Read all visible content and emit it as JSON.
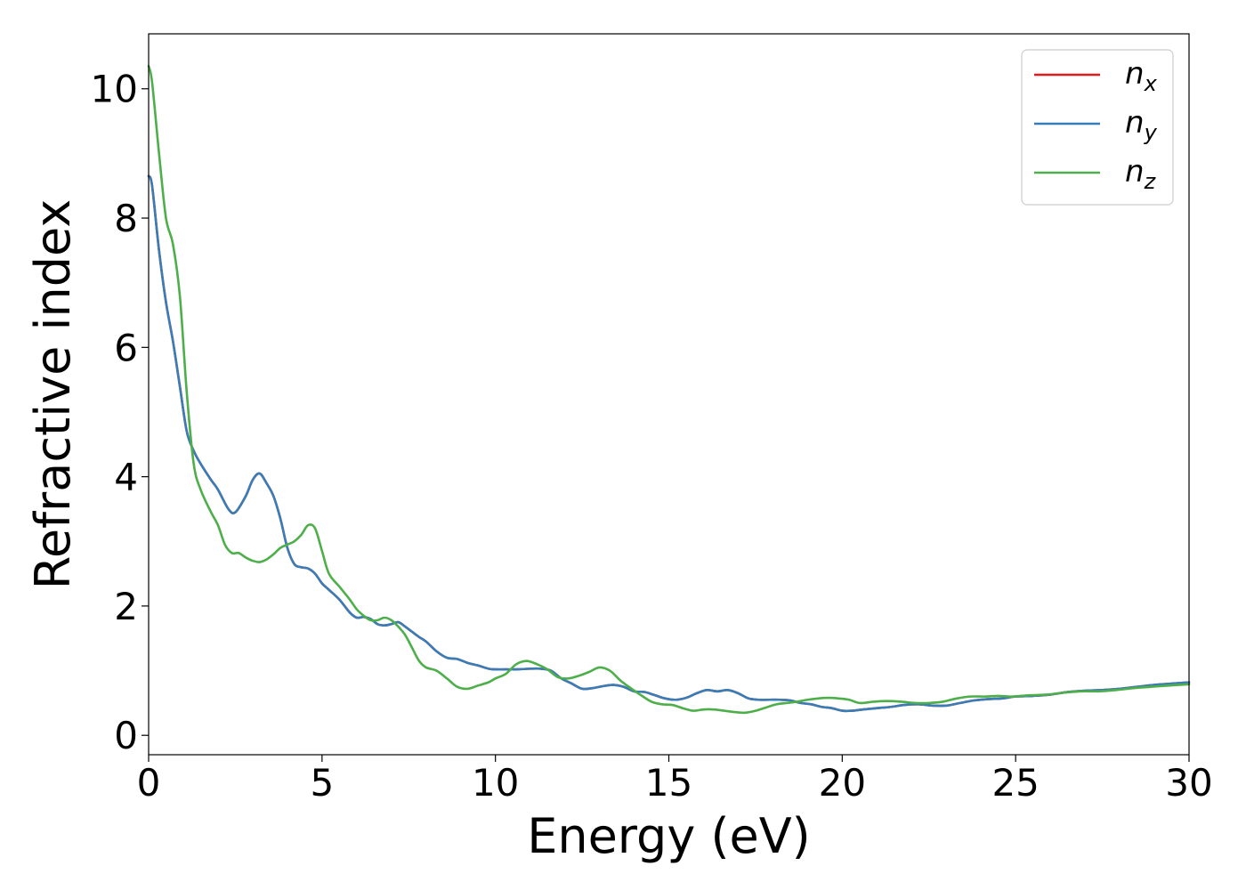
{
  "chart_data": {
    "type": "line",
    "title": "",
    "xlabel": "Energy (eV)",
    "ylabel": "Refractive index",
    "xlim": [
      0,
      30
    ],
    "ylim": [
      -0.3,
      10.85
    ],
    "xticks": [
      0,
      5,
      10,
      15,
      20,
      25,
      30
    ],
    "yticks": [
      0,
      2,
      4,
      6,
      8,
      10
    ],
    "xtick_labels": [
      "0",
      "5",
      "10",
      "15",
      "20",
      "25",
      "30"
    ],
    "ytick_labels": [
      "0",
      "2",
      "4",
      "6",
      "8",
      "10"
    ],
    "grid": false,
    "legend_position": "top-right",
    "series": [
      {
        "name": "n_x",
        "label_main": "n",
        "label_sub": "x",
        "color": "#e41a1c",
        "x": [
          0,
          0.1,
          0.3,
          0.5,
          0.7,
          0.9,
          1.1,
          1.3,
          1.5,
          1.8,
          2.0,
          2.3,
          2.5,
          2.8,
          3.0,
          3.2,
          3.4,
          3.6,
          3.8,
          4.0,
          4.2,
          4.4,
          4.6,
          4.8,
          5.0,
          5.2,
          5.5,
          5.8,
          6.0,
          6.2,
          6.4,
          6.6,
          6.8,
          7.0,
          7.2,
          7.4,
          7.6,
          7.8,
          8.0,
          8.3,
          8.6,
          8.9,
          9.2,
          9.5,
          9.8,
          10.0,
          10.3,
          10.6,
          11.0,
          11.3,
          11.6,
          11.9,
          12.2,
          12.5,
          12.8,
          13.1,
          13.4,
          13.7,
          14.0,
          14.3,
          14.6,
          14.9,
          15.2,
          15.5,
          15.8,
          16.1,
          16.4,
          16.7,
          17.0,
          17.3,
          17.6,
          17.9,
          18.2,
          18.5,
          18.8,
          19.1,
          19.4,
          19.7,
          20.0,
          20.3,
          20.6,
          21.0,
          21.4,
          21.8,
          22.2,
          22.6,
          23.0,
          23.4,
          23.8,
          24.2,
          24.6,
          25.0,
          25.5,
          26.0,
          26.5,
          27.0,
          27.5,
          28.0,
          28.5,
          29.0,
          29.5,
          30.0
        ],
        "y": [
          8.65,
          8.5,
          7.5,
          6.7,
          6.1,
          5.4,
          4.7,
          4.4,
          4.2,
          3.95,
          3.8,
          3.5,
          3.45,
          3.7,
          3.95,
          4.05,
          3.9,
          3.7,
          3.35,
          2.9,
          2.65,
          2.6,
          2.58,
          2.5,
          2.35,
          2.25,
          2.1,
          1.9,
          1.82,
          1.83,
          1.8,
          1.72,
          1.7,
          1.72,
          1.75,
          1.68,
          1.6,
          1.52,
          1.45,
          1.3,
          1.2,
          1.18,
          1.12,
          1.08,
          1.03,
          1.02,
          1.02,
          1.02,
          1.03,
          1.03,
          1.0,
          0.88,
          0.8,
          0.72,
          0.73,
          0.76,
          0.78,
          0.75,
          0.68,
          0.67,
          0.62,
          0.57,
          0.55,
          0.58,
          0.65,
          0.7,
          0.68,
          0.7,
          0.65,
          0.57,
          0.55,
          0.55,
          0.55,
          0.54,
          0.5,
          0.48,
          0.44,
          0.42,
          0.38,
          0.38,
          0.4,
          0.42,
          0.44,
          0.47,
          0.48,
          0.46,
          0.46,
          0.5,
          0.54,
          0.56,
          0.57,
          0.6,
          0.61,
          0.63,
          0.67,
          0.69,
          0.7,
          0.72,
          0.75,
          0.78,
          0.8,
          0.82
        ]
      },
      {
        "name": "n_y",
        "label_main": "n",
        "label_sub": "y",
        "color": "#377eb8",
        "x": [
          0,
          0.1,
          0.3,
          0.5,
          0.7,
          0.9,
          1.1,
          1.3,
          1.5,
          1.8,
          2.0,
          2.3,
          2.5,
          2.8,
          3.0,
          3.2,
          3.4,
          3.6,
          3.8,
          4.0,
          4.2,
          4.4,
          4.6,
          4.8,
          5.0,
          5.2,
          5.5,
          5.8,
          6.0,
          6.2,
          6.4,
          6.6,
          6.8,
          7.0,
          7.2,
          7.4,
          7.6,
          7.8,
          8.0,
          8.3,
          8.6,
          8.9,
          9.2,
          9.5,
          9.8,
          10.0,
          10.3,
          10.6,
          11.0,
          11.3,
          11.6,
          11.9,
          12.2,
          12.5,
          12.8,
          13.1,
          13.4,
          13.7,
          14.0,
          14.3,
          14.6,
          14.9,
          15.2,
          15.5,
          15.8,
          16.1,
          16.4,
          16.7,
          17.0,
          17.3,
          17.6,
          17.9,
          18.2,
          18.5,
          18.8,
          19.1,
          19.4,
          19.7,
          20.0,
          20.3,
          20.6,
          21.0,
          21.4,
          21.8,
          22.2,
          22.6,
          23.0,
          23.4,
          23.8,
          24.2,
          24.6,
          25.0,
          25.5,
          26.0,
          26.5,
          27.0,
          27.5,
          28.0,
          28.5,
          29.0,
          29.5,
          30.0
        ],
        "y": [
          8.65,
          8.5,
          7.5,
          6.7,
          6.1,
          5.4,
          4.7,
          4.4,
          4.2,
          3.95,
          3.8,
          3.5,
          3.45,
          3.7,
          3.95,
          4.05,
          3.9,
          3.7,
          3.35,
          2.9,
          2.65,
          2.6,
          2.58,
          2.5,
          2.35,
          2.25,
          2.1,
          1.9,
          1.82,
          1.83,
          1.8,
          1.72,
          1.7,
          1.72,
          1.75,
          1.68,
          1.6,
          1.52,
          1.45,
          1.3,
          1.2,
          1.18,
          1.12,
          1.08,
          1.03,
          1.02,
          1.02,
          1.02,
          1.03,
          1.03,
          1.0,
          0.88,
          0.8,
          0.72,
          0.73,
          0.76,
          0.78,
          0.75,
          0.68,
          0.67,
          0.62,
          0.57,
          0.55,
          0.58,
          0.65,
          0.7,
          0.68,
          0.7,
          0.65,
          0.57,
          0.55,
          0.55,
          0.55,
          0.54,
          0.5,
          0.48,
          0.44,
          0.42,
          0.38,
          0.38,
          0.4,
          0.42,
          0.44,
          0.47,
          0.48,
          0.46,
          0.46,
          0.5,
          0.54,
          0.56,
          0.57,
          0.6,
          0.61,
          0.63,
          0.67,
          0.69,
          0.7,
          0.72,
          0.75,
          0.78,
          0.8,
          0.82
        ]
      },
      {
        "name": "n_z",
        "label_main": "n",
        "label_sub": "z",
        "color": "#4daf4a",
        "x": [
          0,
          0.1,
          0.3,
          0.5,
          0.7,
          0.9,
          1.1,
          1.3,
          1.5,
          1.8,
          2.0,
          2.2,
          2.4,
          2.6,
          2.8,
          3.0,
          3.2,
          3.4,
          3.6,
          3.8,
          4.0,
          4.2,
          4.4,
          4.6,
          4.8,
          5.0,
          5.2,
          5.5,
          5.8,
          6.0,
          6.2,
          6.4,
          6.6,
          6.8,
          7.0,
          7.2,
          7.4,
          7.6,
          7.8,
          8.0,
          8.3,
          8.6,
          8.9,
          9.2,
          9.5,
          9.8,
          10.0,
          10.3,
          10.6,
          10.9,
          11.2,
          11.5,
          11.8,
          12.1,
          12.4,
          12.7,
          13.0,
          13.3,
          13.6,
          13.9,
          14.2,
          14.5,
          14.8,
          15.1,
          15.4,
          15.7,
          16.0,
          16.3,
          16.6,
          16.9,
          17.2,
          17.5,
          17.8,
          18.1,
          18.4,
          18.7,
          19.0,
          19.3,
          19.6,
          19.9,
          20.2,
          20.5,
          20.9,
          21.3,
          21.7,
          22.1,
          22.5,
          22.9,
          23.3,
          23.7,
          24.1,
          24.5,
          24.9,
          25.4,
          25.9,
          26.4,
          26.9,
          27.4,
          27.9,
          28.4,
          28.9,
          29.4,
          30.0
        ],
        "y": [
          10.35,
          10.1,
          9.0,
          8.0,
          7.6,
          6.8,
          5.3,
          4.2,
          3.8,
          3.45,
          3.25,
          2.95,
          2.82,
          2.82,
          2.75,
          2.7,
          2.68,
          2.72,
          2.8,
          2.9,
          2.95,
          3.0,
          3.1,
          3.25,
          3.2,
          2.85,
          2.5,
          2.3,
          2.1,
          1.95,
          1.85,
          1.78,
          1.78,
          1.82,
          1.78,
          1.68,
          1.55,
          1.35,
          1.15,
          1.05,
          1.0,
          0.88,
          0.75,
          0.72,
          0.77,
          0.82,
          0.88,
          0.95,
          1.1,
          1.15,
          1.1,
          1.02,
          0.9,
          0.88,
          0.92,
          0.98,
          1.05,
          1.0,
          0.85,
          0.73,
          0.62,
          0.52,
          0.48,
          0.47,
          0.42,
          0.38,
          0.4,
          0.4,
          0.38,
          0.36,
          0.35,
          0.38,
          0.43,
          0.48,
          0.5,
          0.52,
          0.55,
          0.57,
          0.58,
          0.57,
          0.55,
          0.5,
          0.52,
          0.53,
          0.52,
          0.5,
          0.5,
          0.52,
          0.57,
          0.6,
          0.6,
          0.61,
          0.6,
          0.62,
          0.63,
          0.66,
          0.68,
          0.68,
          0.7,
          0.73,
          0.75,
          0.77,
          0.79
        ]
      }
    ]
  }
}
